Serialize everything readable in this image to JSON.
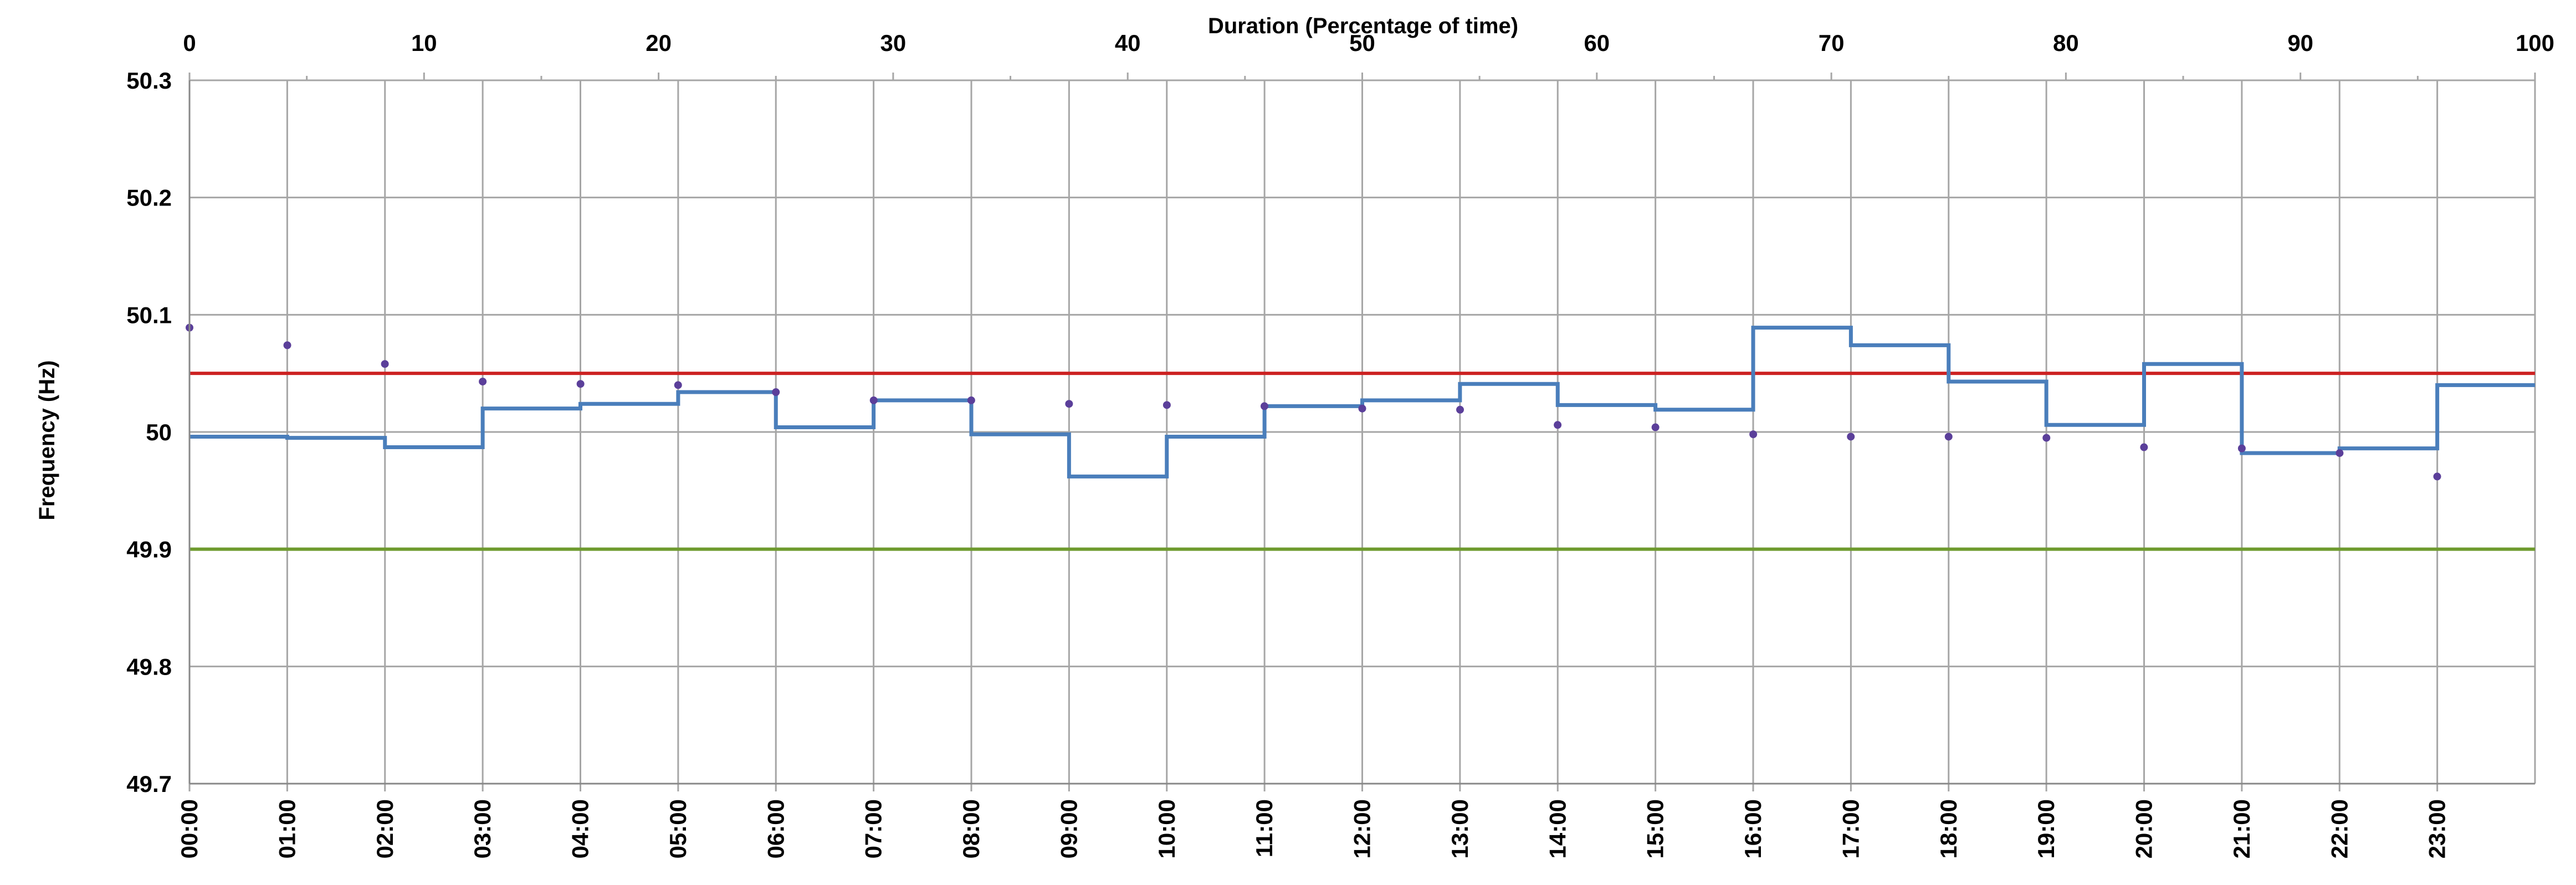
{
  "chart_data": {
    "type": "line",
    "ylabel": "Frequency (Hz)",
    "x2label": "Duration (Percentage of time)",
    "ylim": [
      49.7,
      50.3
    ],
    "yticks": [
      "50.3",
      "50.2",
      "50.1",
      "50",
      "49.9",
      "49.8",
      "49.7"
    ],
    "ytick_values": [
      50.3,
      50.2,
      50.1,
      50.0,
      49.9,
      49.8,
      49.7
    ],
    "x_time_ticks": [
      "00:00",
      "01:00",
      "02:00",
      "03:00",
      "04:00",
      "05:00",
      "06:00",
      "07:00",
      "08:00",
      "09:00",
      "10:00",
      "11:00",
      "12:00",
      "13:00",
      "14:00",
      "15:00",
      "16:00",
      "17:00",
      "18:00",
      "19:00",
      "20:00",
      "21:00",
      "22:00",
      "23:00"
    ],
    "x2_ticks": [
      "0",
      "10",
      "20",
      "30",
      "40",
      "50",
      "60",
      "70",
      "80",
      "90",
      "100"
    ],
    "x2_tick_values": [
      0,
      10,
      20,
      30,
      40,
      50,
      60,
      70,
      80,
      90,
      100
    ],
    "x2lim": [
      0,
      100
    ],
    "grid": true,
    "series": [
      {
        "kind": "step",
        "color": "#4a7ebb",
        "hours": [
          "00:00",
          "01:00",
          "02:00",
          "03:00",
          "04:00",
          "05:00",
          "06:00",
          "07:00",
          "08:00",
          "09:00",
          "10:00",
          "11:00",
          "12:00",
          "13:00",
          "14:00",
          "15:00",
          "16:00",
          "17:00",
          "18:00",
          "19:00",
          "20:00",
          "21:00",
          "22:00",
          "23:00"
        ],
        "values": [
          49.996,
          49.995,
          49.987,
          50.02,
          50.024,
          50.034,
          50.004,
          50.027,
          49.998,
          49.962,
          49.996,
          50.022,
          50.027,
          50.041,
          50.023,
          50.019,
          50.089,
          50.074,
          50.043,
          50.006,
          50.058,
          49.982,
          49.986,
          50.04
        ]
      },
      {
        "kind": "scatter",
        "color": "#5b3f9a",
        "x_percent": [
          0,
          4.17,
          8.33,
          12.5,
          16.67,
          20.83,
          25,
          29.17,
          33.33,
          37.5,
          41.67,
          45.83,
          50,
          54.17,
          58.33,
          62.5,
          66.67,
          70.83,
          75,
          79.17,
          83.33,
          87.5,
          91.67,
          95.83
        ],
        "values": [
          50.089,
          50.074,
          50.058,
          50.043,
          50.041,
          50.04,
          50.034,
          50.027,
          50.027,
          50.024,
          50.023,
          50.022,
          50.02,
          50.019,
          50.006,
          50.004,
          49.998,
          49.996,
          49.996,
          49.995,
          49.987,
          49.986,
          49.982,
          49.962
        ]
      }
    ],
    "reference_lines": [
      {
        "value": 50.05,
        "color": "#cc2222"
      },
      {
        "value": 49.9,
        "color": "#6e9a2e"
      }
    ],
    "gridline_color": "#a6a6a6"
  }
}
